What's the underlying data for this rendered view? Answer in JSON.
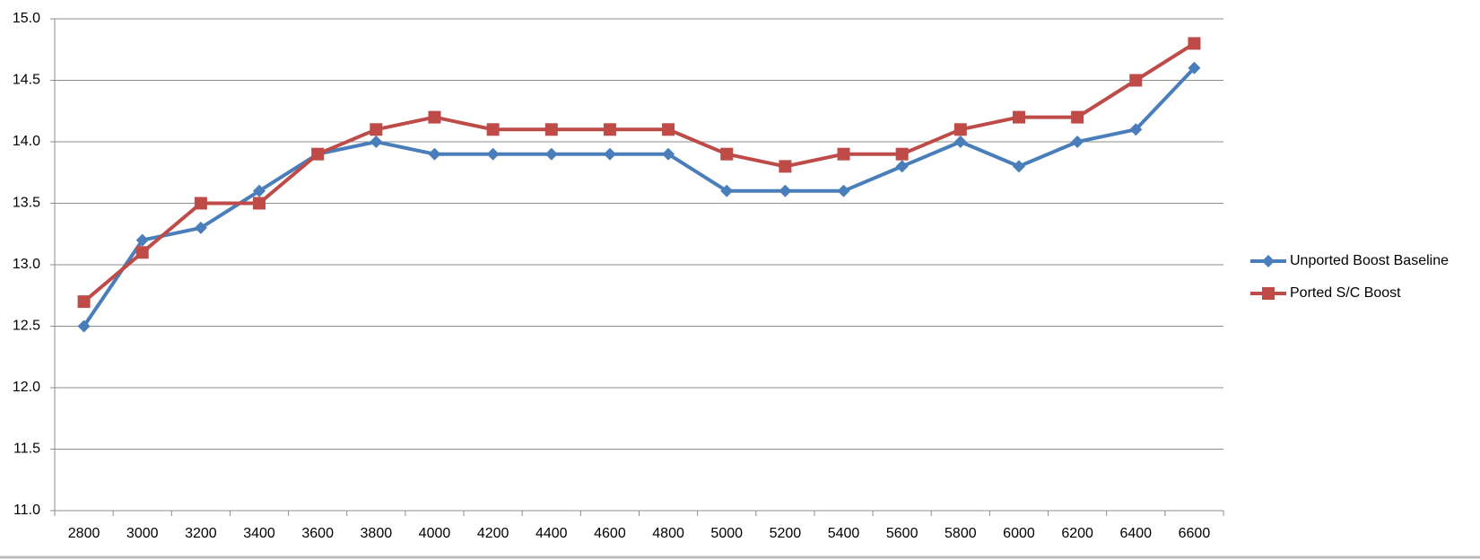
{
  "chart_data": {
    "type": "line",
    "categories": [
      "2800",
      "3000",
      "3200",
      "3400",
      "3600",
      "3800",
      "4000",
      "4200",
      "4400",
      "4600",
      "4800",
      "5000",
      "5200",
      "5400",
      "5600",
      "5800",
      "6000",
      "6200",
      "6400",
      "6600"
    ],
    "series": [
      {
        "name": "Unported Boost Baseline",
        "color": "#4a7ebb",
        "marker": "diamond",
        "values": [
          12.5,
          13.2,
          13.3,
          13.6,
          13.9,
          14.0,
          13.9,
          13.9,
          13.9,
          13.9,
          13.9,
          13.6,
          13.6,
          13.6,
          13.8,
          14.0,
          13.8,
          14.0,
          14.1,
          14.6
        ]
      },
      {
        "name": "Ported S/C Boost",
        "color": "#be4b48",
        "marker": "square",
        "values": [
          12.7,
          13.1,
          13.5,
          13.5,
          13.9,
          14.1,
          14.2,
          14.1,
          14.1,
          14.1,
          14.1,
          13.9,
          13.8,
          13.9,
          13.9,
          14.1,
          14.2,
          14.2,
          14.5,
          14.8
        ]
      }
    ],
    "ylim": [
      11,
      15
    ],
    "yticks": [
      {
        "value": 11,
        "label": "11.0"
      },
      11.5,
      {
        "value": 12,
        "label": "12.0"
      },
      12.5,
      {
        "value": 13,
        "label": "13.0"
      },
      13.5,
      {
        "value": 14,
        "label": "14.0"
      },
      14.5,
      {
        "value": 15,
        "label": "15.0"
      }
    ],
    "grid": true,
    "legend": "right"
  }
}
